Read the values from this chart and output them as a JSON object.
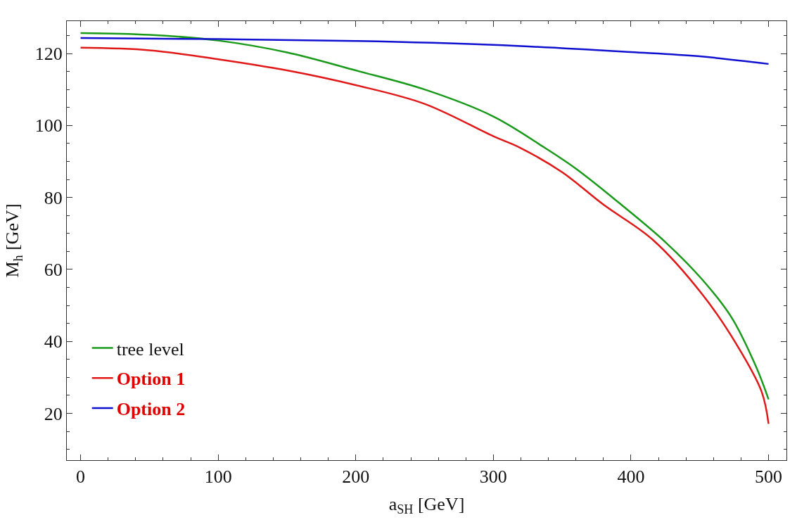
{
  "chart_data": {
    "type": "line",
    "xlabel": "a$_{SH}$ [GeV]",
    "ylabel": "M$_{h}$ [GeV]",
    "xlim": [
      -10,
      513
    ],
    "ylim": [
      7,
      129
    ],
    "xticks": [
      0,
      100,
      200,
      300,
      400,
      500
    ],
    "yticks": [
      20,
      40,
      60,
      80,
      100,
      120
    ],
    "legend": "bottom left",
    "marker": "none",
    "line_style": "solid",
    "series": [
      {
        "name": "tree level",
        "color": "#1a9a1a",
        "x": [
          0,
          50,
          100,
          150,
          200,
          250,
          300,
          337,
          360,
          391,
          425,
          452,
          473,
          491,
          500
        ],
        "values": [
          125.7,
          125.2,
          123.6,
          120.3,
          115.3,
          110,
          102.5,
          93.9,
          88,
          78.6,
          67.6,
          57.1,
          46.7,
          32.9,
          23.9
        ]
      },
      {
        "name": "Option 1",
        "color": "#e01818",
        "x": [
          0,
          50,
          100,
          150,
          200,
          250,
          300,
          319,
          350,
          380,
          416,
          452,
          477,
          495,
          500
        ],
        "values": [
          121.6,
          120.9,
          118.4,
          115.3,
          111.2,
          106,
          97,
          93.9,
          87,
          78,
          68.2,
          53,
          39,
          26,
          17.1
        ]
      },
      {
        "name": "Option 2",
        "color": "#1010d0",
        "x": [
          0,
          100,
          200,
          300,
          400,
          450,
          500
        ],
        "values": [
          124.3,
          124.0,
          123.5,
          122.4,
          120.4,
          119.2,
          117.1
        ]
      }
    ]
  }
}
